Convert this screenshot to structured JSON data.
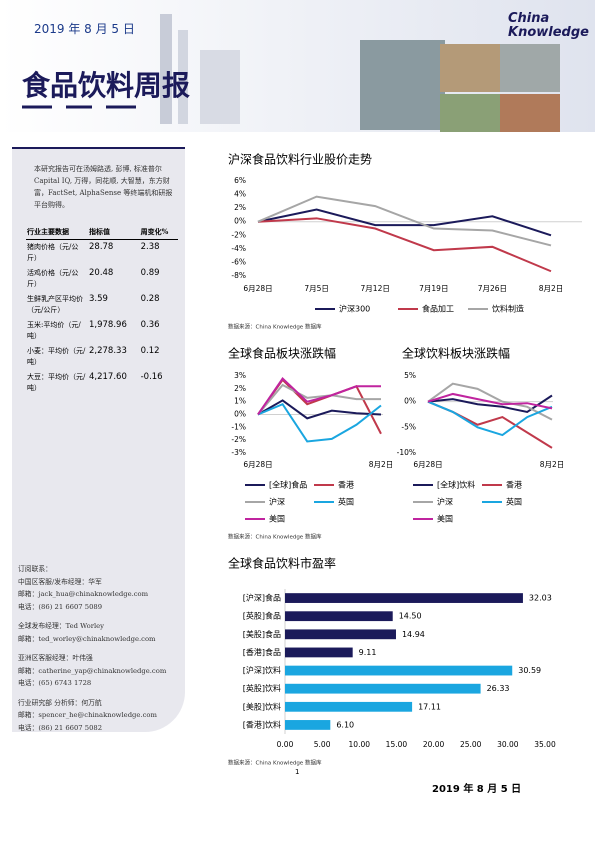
{
  "header": {
    "date": "2019 年 8 月 5 日",
    "title": "食品饮料周报",
    "logo": "China Knowledge"
  },
  "sidebar": {
    "intro": "本研究报告可在汤姆路透, 彭博, 标准普尔 Capital IQ, 万得，同花顺, 大智慧，东方财富，FactSet, AlphaSense 等终端机和研报平台购得。",
    "table": {
      "header": [
        "行业主要数据",
        "指标值",
        "周变化%"
      ],
      "rows": [
        [
          "猪肉价格（元/公斤）",
          "28.78",
          "2.38"
        ],
        [
          "活鸡价格（元/公斤）",
          "20.48",
          "0.89"
        ],
        [
          "生鲜乳产区平均价（元/公斤）",
          "3.59",
          "0.28"
        ],
        [
          "玉米:平均价（元/吨）",
          "1,978.96",
          "0.36"
        ],
        [
          "小麦：平均价（元/吨）",
          "2,278.33",
          "0.12"
        ],
        [
          "大豆：平均价（元/吨）",
          "4,217.60",
          "-0.16"
        ]
      ]
    },
    "contacts": [
      [
        "订阅联系：",
        "中国区客服/发布经理：华军",
        "邮箱：jack_hua@chinaknowledge.com",
        "电话：(86) 21 6607 5089"
      ],
      [
        "全球发布经理：Ted Worley",
        "邮箱：ted_worley@chinaknowledge.com"
      ],
      [
        "亚洲区客服经理：叶伟强",
        "邮箱：catherine_yap@chinaknowledge.com",
        "电话：(65) 6743 1728"
      ],
      [
        "行业研究部 分析师：何万航",
        "邮箱：spencer_he@chinaknowledge.com",
        "电话：(86) 21 6607 5082"
      ]
    ]
  },
  "chart_data": [
    {
      "type": "line",
      "title": "沪深食品饮料行业股价走势",
      "categories": [
        "6月28日",
        "7月5日",
        "7月12日",
        "7月19日",
        "7月26日",
        "8月2日"
      ],
      "series": [
        {
          "name": "沪深300",
          "color": "#1b1a5a",
          "values": [
            0,
            1.8,
            -0.5,
            -0.5,
            0.8,
            -2.0
          ]
        },
        {
          "name": "食品加工",
          "color": "#c0394b",
          "values": [
            0,
            0.5,
            -1.0,
            -4.2,
            -3.7,
            -7.3
          ]
        },
        {
          "name": "饮料制造",
          "color": "#a6a6a6",
          "values": [
            0,
            3.7,
            2.3,
            -1.0,
            -1.3,
            -3.5
          ]
        }
      ],
      "ylim": [
        -8,
        6
      ],
      "yticks": [
        {
          "value": 6,
          "label": "6%"
        },
        {
          "value": 4,
          "label": "4%"
        },
        {
          "value": 2,
          "label": "2%"
        },
        {
          "value": 0,
          "label": "0%"
        },
        {
          "value": -2,
          "label": "-2%"
        },
        {
          "value": -4,
          "label": "-4%"
        },
        {
          "value": -6,
          "label": "-6%"
        },
        {
          "value": -8,
          "label": "-8%"
        }
      ],
      "legend": "bottom",
      "source": "数据来源：China Knowledge 数据库"
    },
    {
      "type": "line",
      "title": "全球食品板块涨跌幅",
      "categories": [
        "6月28日",
        null,
        null,
        null,
        null,
        "8月2日"
      ],
      "series": [
        {
          "name": "[全球]食品",
          "color": "#1b1a5a",
          "values": [
            0,
            1.1,
            -0.3,
            0.3,
            0.1,
            0.0
          ]
        },
        {
          "name": "香港",
          "color": "#c0394b",
          "values": [
            0,
            2.7,
            0.8,
            1.5,
            2.2,
            -1.5
          ]
        },
        {
          "name": "沪深",
          "color": "#a6a6a6",
          "values": [
            0,
            2.3,
            1.3,
            1.5,
            1.2,
            1.2
          ]
        },
        {
          "name": "英国",
          "color": "#1aa6e0",
          "values": [
            0,
            0.8,
            -2.1,
            -1.9,
            -0.8,
            0.7
          ]
        },
        {
          "name": "美国",
          "color": "#c0249f",
          "values": [
            0,
            2.8,
            1.0,
            1.5,
            2.2,
            2.2
          ]
        }
      ],
      "ylim": [
        -3,
        3
      ],
      "yticks": [
        {
          "value": 3,
          "label": "3%"
        },
        {
          "value": 2,
          "label": "2%"
        },
        {
          "value": 1,
          "label": "1%"
        },
        {
          "value": 0,
          "label": "0%"
        },
        {
          "value": -1,
          "label": "-1%"
        },
        {
          "value": -2,
          "label": "-2%"
        },
        {
          "value": -3,
          "label": "-3%"
        }
      ],
      "legend": "bottom"
    },
    {
      "type": "line",
      "title": "全球饮料板块涨跌幅",
      "categories": [
        "6月28日",
        null,
        null,
        null,
        null,
        "8月2日"
      ],
      "series": [
        {
          "name": "[全球]饮料",
          "color": "#1b1a5a",
          "values": [
            0,
            0.5,
            -0.5,
            -1,
            -2,
            1.2
          ]
        },
        {
          "name": "香港",
          "color": "#c0394b",
          "values": [
            0,
            -2,
            -4.5,
            -3,
            -6,
            -9
          ]
        },
        {
          "name": "沪深",
          "color": "#a6a6a6",
          "values": [
            0,
            3.5,
            2.5,
            0,
            -1,
            -3.5
          ]
        },
        {
          "name": "英国",
          "color": "#1aa6e0",
          "values": [
            0,
            -2,
            -5,
            -6.5,
            -3,
            -1
          ]
        },
        {
          "name": "美国",
          "color": "#c0249f",
          "values": [
            0,
            1.5,
            0.5,
            -0.5,
            -0.3,
            -1.3
          ]
        }
      ],
      "ylim": [
        -10,
        5
      ],
      "yticks": [
        {
          "value": 5,
          "label": "5%"
        },
        {
          "value": 0,
          "label": "0%"
        },
        {
          "value": -5,
          "label": "-5%"
        },
        {
          "value": -10,
          "label": "-10%"
        }
      ],
      "legend": "bottom",
      "source": "数据来源：China Knowledge 数据库"
    },
    {
      "type": "bar-h",
      "title": "全球食品饮料市盈率",
      "categories": [
        "[沪深]食品",
        "[英股]食品",
        "[美股]食品",
        "[香港]食品",
        "[沪深]饮料",
        "[英股]饮料",
        "[美股]饮料",
        "[香港]饮料"
      ],
      "values": [
        32.03,
        14.5,
        14.94,
        9.11,
        30.59,
        26.33,
        17.11,
        6.1
      ],
      "value_labels": [
        "32.03",
        "14.50",
        "14.94",
        "9.11",
        "30.59",
        "26.33",
        "17.11",
        "6.10"
      ],
      "colors": [
        "#1b1a5a",
        "#1b1a5a",
        "#1b1a5a",
        "#1b1a5a",
        "#1aa6e0",
        "#1aa6e0",
        "#1aa6e0",
        "#1aa6e0"
      ],
      "xlim": [
        0,
        35
      ],
      "xticks": [
        {
          "value": 0,
          "label": "0.00"
        },
        {
          "value": 5,
          "label": "5.00"
        },
        {
          "value": 10,
          "label": "10.00"
        },
        {
          "value": 15,
          "label": "15.00"
        },
        {
          "value": 20,
          "label": "20.00"
        },
        {
          "value": 25,
          "label": "25.00"
        },
        {
          "value": 30,
          "label": "30.00"
        },
        {
          "value": 35,
          "label": "35.00"
        }
      ],
      "source": "数据来源：China Knowledge 数据库"
    }
  ],
  "footer": {
    "page": "1",
    "date": "2019 年 8 月 5 日"
  }
}
